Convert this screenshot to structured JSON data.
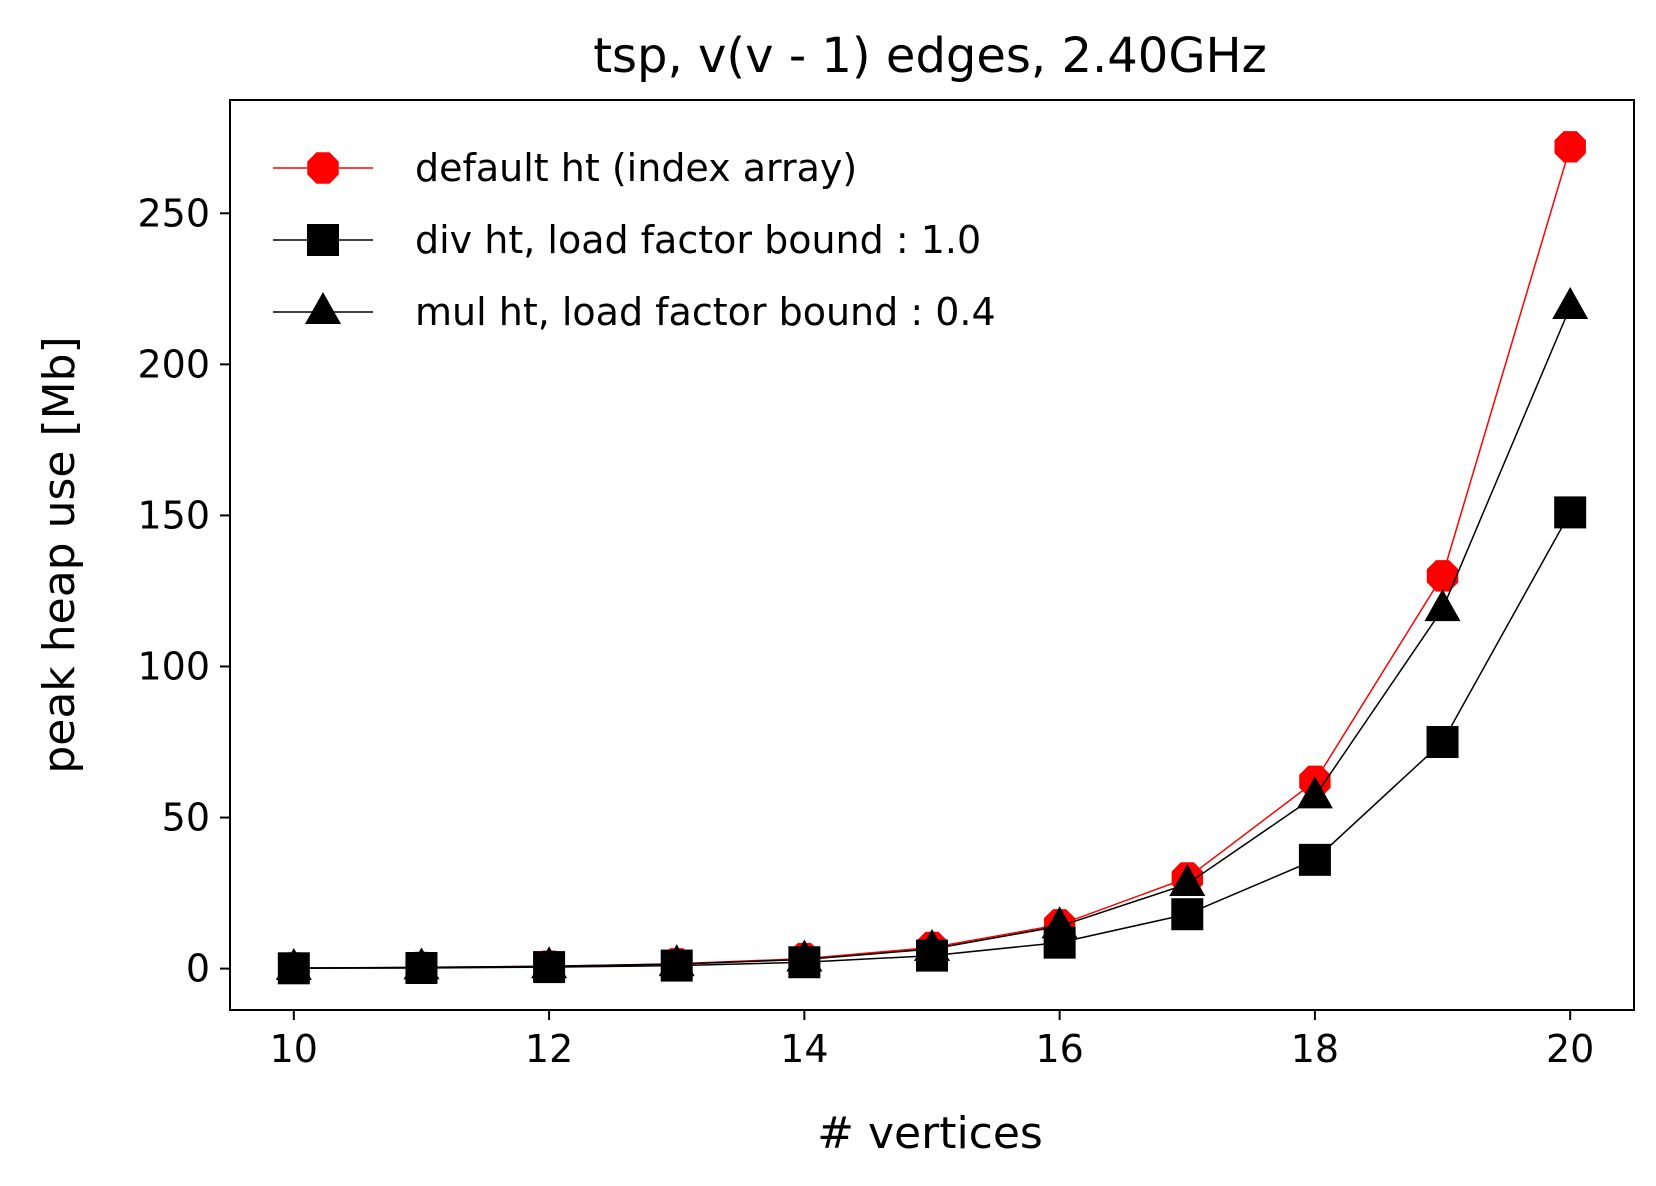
{
  "chart_data": {
    "type": "line",
    "title": "tsp, v(v - 1) edges, 2.40GHz",
    "xlabel": "# vertices",
    "ylabel": "peak heap use [Mb]",
    "xlim": [
      9.5,
      20.5
    ],
    "ylim": [
      -13.7,
      287.5
    ],
    "xticks": [
      10,
      12,
      14,
      16,
      18,
      20
    ],
    "yticks": [
      0,
      50,
      100,
      150,
      200,
      250
    ],
    "grid": false,
    "legend_position": "top-left",
    "x": [
      10,
      11,
      12,
      13,
      14,
      15,
      16,
      17,
      18,
      19,
      20
    ],
    "series": [
      {
        "name": "default ht (index array)",
        "color": "#ff0000",
        "marker": "octagon",
        "values": [
          0.2,
          0.4,
          0.8,
          1.6,
          3.3,
          7.0,
          14.5,
          30,
          62,
          130,
          272
        ]
      },
      {
        "name": "div ht, load factor bound : 1.0",
        "color": "#000000",
        "marker": "square",
        "values": [
          0.1,
          0.2,
          0.5,
          1.0,
          2.1,
          4.3,
          8.6,
          18,
          36,
          75,
          151
        ]
      },
      {
        "name": "mul ht, load factor bound : 0.4",
        "color": "#000000",
        "marker": "triangle",
        "values": [
          0.2,
          0.4,
          0.8,
          1.5,
          3.0,
          6.5,
          14,
          28,
          57,
          119,
          219
        ]
      }
    ]
  }
}
